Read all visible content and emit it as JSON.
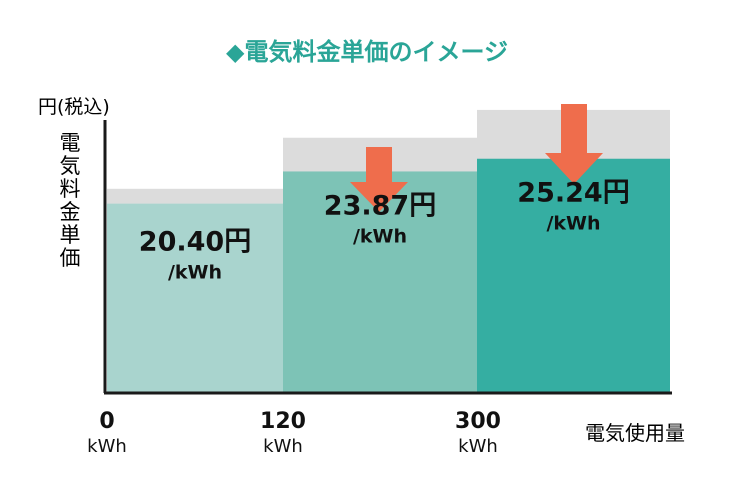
{
  "chart_data": {
    "type": "bar",
    "title": "◆電気料金単価のイメージ",
    "ylabel": "電気料金単価",
    "yunit": "円(税込)",
    "xlabel": "電気使用量",
    "x_ticks": [
      {
        "value": "0",
        "unit": "kWh"
      },
      {
        "value": "120",
        "unit": "kWh"
      },
      {
        "value": "300",
        "unit": "kWh"
      }
    ],
    "categories": [
      "0–120 kWh",
      "120–300 kWh",
      "300 kWh〜"
    ],
    "series": [
      {
        "values": [
          20.4,
          23.87,
          25.24
        ]
      },
      {
        "values": [
          22.0,
          27.5,
          30.5
        ]
      }
    ],
    "value_labels": [
      "20.40円",
      "23.87円",
      "25.24円"
    ],
    "per_unit_label": "/kWh",
    "ylim": [
      0,
      32
    ],
    "colors": {
      "title": "#2aa597",
      "bars": [
        "#a9d4ce",
        "#7dc3b6",
        "#35aea2"
      ],
      "previous": "#dcdcdc",
      "arrow": "#ef6d4c",
      "axis": "#1a1a1a"
    },
    "arrows_on": [
      1,
      2
    ],
    "value_unit": "円/kWh"
  }
}
